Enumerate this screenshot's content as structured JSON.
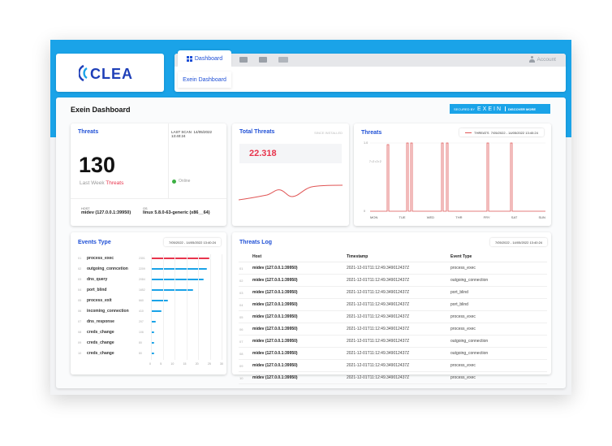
{
  "logo": {
    "text": "CLEA"
  },
  "nav": {
    "active_tab": "Dashboard",
    "sub_tab": "Exein Dashboard",
    "icons": [
      "monitor-icon",
      "server-icon",
      "devices-icon"
    ],
    "account": "Account"
  },
  "page": {
    "title": "Exein Dashboard",
    "banner": {
      "secured": "SECURED BY",
      "brand": "EXEIN",
      "discover": "DISCOVER MORE"
    }
  },
  "threats_card": {
    "title": "Threats",
    "count": "130",
    "caption_prefix": "Last Week",
    "caption_suffix": "Threats",
    "last_scan_label": "LAST SCAN",
    "last_scan_value": "14/05/2022 13:40:24",
    "status": "Online",
    "host_label": "HOST",
    "host_value": "midev (127.0.0.1:39950)",
    "os_label": "OS",
    "os_value": "linux 5.8.0-63-generic (x86__64)"
  },
  "total_threats": {
    "title": "Total Threats",
    "since": "SINCE INSTALLED",
    "value": "22.318"
  },
  "threats_chart": {
    "title": "Threats",
    "legend": "THREATS",
    "date_range": "7/05/2022 - 14/05/2022 13:40:24",
    "y_top": "1.0",
    "y_mid": "7 • 2 • 2 • 2",
    "y_bottom": "0",
    "days": [
      "MON",
      "TUE",
      "WED",
      "THR",
      "FRY",
      "SAT",
      "SUN"
    ],
    "accent": "#e05555"
  },
  "events_type": {
    "title": "Events Type",
    "date_range": "7/05/2022 - 14/05/2022 13:40:24",
    "accent_first": "#e8344c",
    "accent_rest": "#1aa3e8",
    "items": [
      {
        "idx": "01",
        "label": "process_exec",
        "count": "2301"
      },
      {
        "idx": "02",
        "label": "outgoing_conncetion",
        "count": "2209"
      },
      {
        "idx": "03",
        "label": "dns_query",
        "count": "2084"
      },
      {
        "idx": "04",
        "label": "port_blind",
        "count": "1652"
      },
      {
        "idx": "05",
        "label": "process_exit",
        "count": "660"
      },
      {
        "idx": "06",
        "label": "incoming_connection",
        "count": "410"
      },
      {
        "idx": "07",
        "label": "dns_response",
        "count": "207"
      },
      {
        "idx": "08",
        "label": "creds_change",
        "count": "106"
      },
      {
        "idx": "09",
        "label": "creds_change",
        "count": "80"
      },
      {
        "idx": "10",
        "label": "creds_change",
        "count": "80"
      }
    ],
    "axis": [
      "0",
      "5",
      "10",
      "15",
      "20",
      "25",
      "30"
    ]
  },
  "threats_log": {
    "title": "Threats Log",
    "date_range": "7/05/2022 - 14/05/2022 13:40:24",
    "columns": [
      "Host",
      "Timestamp",
      "Event Type"
    ],
    "rows": [
      {
        "idx": "01",
        "host": "midev (127.0.0.1:39950)",
        "ts": "2021-12-01T11:12:49.349012437Z",
        "event": "process_exec"
      },
      {
        "idx": "02",
        "host": "midev (127.0.0.1:39950)",
        "ts": "2021-12-01T11:12:49.349012437Z",
        "event": "outgoing_connection"
      },
      {
        "idx": "03",
        "host": "midev (127.0.0.1:39950)",
        "ts": "2021-12-01T11:12:49.349012437Z",
        "event": "port_blind"
      },
      {
        "idx": "04",
        "host": "midev (127.0.0.1:39950)",
        "ts": "2021-12-01T11:12:49.349012437Z",
        "event": "port_blind"
      },
      {
        "idx": "05",
        "host": "midev (127.0.0.1:39950)",
        "ts": "2021-12-01T11:12:49.349012437Z",
        "event": "process_exec"
      },
      {
        "idx": "06",
        "host": "midev (127.0.0.1:39950)",
        "ts": "2021-12-01T11:12:49.349012437Z",
        "event": "process_exec"
      },
      {
        "idx": "07",
        "host": "midev (127.0.0.1:39950)",
        "ts": "2021-12-01T11:12:49.349012437Z",
        "event": "outgoing_connection"
      },
      {
        "idx": "08",
        "host": "midev (127.0.0.1:39950)",
        "ts": "2021-12-01T11:12:49.349012437Z",
        "event": "outgoing_connection"
      },
      {
        "idx": "09",
        "host": "midev (127.0.0.1:39950)",
        "ts": "2021-12-01T11:12:49.349012437Z",
        "event": "process_exec"
      },
      {
        "idx": "10",
        "host": "midev (127.0.0.1:39950)",
        "ts": "2021-12-01T11:12:49.349012437Z",
        "event": "process_exec"
      }
    ]
  }
}
